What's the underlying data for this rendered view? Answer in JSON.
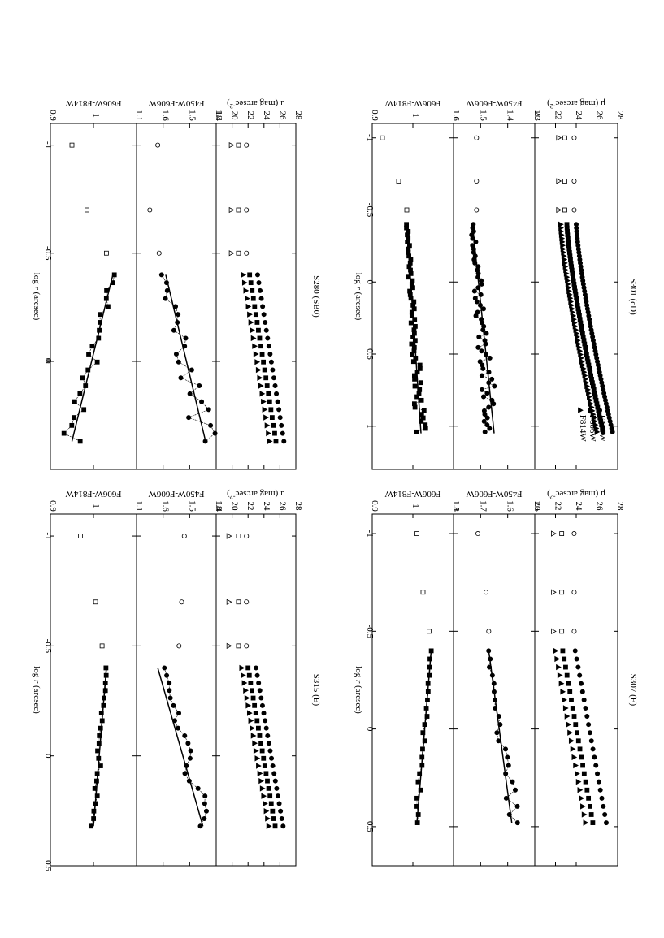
{
  "figure": {
    "x_axis_label_prefix": "log ",
    "x_axis_label_var": "r",
    "x_axis_label_suffix": " (arcsec)",
    "mu_label": "μ (mag arcsec",
    "mu_label_sup": "-2",
    "mu_label_close": ")",
    "color1_label": "F450W-F606W",
    "color2_label": "F606W-F814W"
  },
  "chart_data": [
    {
      "type": "scatter",
      "title": "S301 (cD)",
      "legend": [
        "F450W",
        "F606W",
        "F814W"
      ],
      "xlim": [
        -1.1,
        1.3
      ],
      "x_ticks": [
        "-1",
        "-0.5",
        "0",
        "0.5",
        "1"
      ],
      "mu": {
        "ylim": [
          28,
          20
        ],
        "ticks": [
          "28",
          "26",
          "24",
          "22",
          "20"
        ],
        "f450_points": [
          [
            -1.0,
            23.8
          ],
          [
            -0.7,
            23.8
          ],
          [
            -0.5,
            23.8
          ]
        ],
        "f606_points": [
          [
            -1.0,
            22.9
          ],
          [
            -0.7,
            22.9
          ],
          [
            -0.5,
            22.9
          ]
        ],
        "f814_points": [
          [
            -1.0,
            22.3
          ],
          [
            -0.7,
            22.3
          ],
          [
            -0.5,
            22.3
          ]
        ],
        "f450_profile": {
          "x_start": -0.4,
          "x_end": 1.04,
          "y_start": 24.0,
          "y_end": 27.5,
          "shape": "cd"
        },
        "f606_profile": {
          "x_start": -0.4,
          "x_end": 1.04,
          "y_start": 23.1,
          "y_end": 26.6,
          "shape": "cd"
        },
        "f814_profile": {
          "x_start": -0.4,
          "x_end": 1.04,
          "y_start": 22.5,
          "y_end": 26.0,
          "shape": "cd"
        }
      },
      "c1": {
        "ylim": [
          1.3,
          1.6
        ],
        "ticks": [
          "1.3",
          "1.4",
          "1.5",
          "1.6"
        ],
        "points": [
          [
            -1.0,
            1.515
          ],
          [
            -0.7,
            1.515
          ],
          [
            -0.5,
            1.515
          ]
        ],
        "fit": [
          [
            -0.4,
            1.53
          ],
          [
            1.05,
            1.45
          ]
        ],
        "data_x_start": -0.4,
        "data_x_end": 1.04,
        "data_y_start": 1.53,
        "data_y_end": 1.46,
        "scatter": 0.02
      },
      "c2": {
        "ylim": [
          1.1,
          0.9
        ],
        "ticks": [
          "1.1",
          "1",
          "0.9"
        ],
        "points": [
          [
            -1.0,
            0.925
          ],
          [
            -0.7,
            0.965
          ],
          [
            -0.5,
            0.985
          ]
        ],
        "fit": [
          [
            -0.4,
            0.985
          ],
          [
            1.05,
            1.02
          ]
        ],
        "data_x_start": -0.4,
        "data_x_end": 1.04,
        "data_y_start": 0.985,
        "data_y_end": 1.02,
        "scatter": 0.008
      }
    },
    {
      "type": "scatter",
      "title": "S307 (E)",
      "legend": [],
      "xlim": [
        -1.1,
        0.7
      ],
      "x_ticks": [
        "-1",
        "-0.5",
        "0",
        "0.5"
      ],
      "mu": {
        "ylim": [
          28,
          20
        ],
        "ticks": [
          "28",
          "26",
          "24",
          "22",
          "20"
        ],
        "f450_points": [
          [
            -1.0,
            23.8
          ],
          [
            -0.7,
            23.8
          ],
          [
            -0.5,
            23.8
          ]
        ],
        "f606_points": [
          [
            -1.0,
            22.6
          ],
          [
            -0.7,
            22.6
          ],
          [
            -0.5,
            22.6
          ]
        ],
        "f814_points": [
          [
            -1.0,
            21.8
          ],
          [
            -0.7,
            21.8
          ],
          [
            -0.5,
            21.8
          ]
        ],
        "f450_profile": {
          "x_start": -0.4,
          "x_end": 0.48,
          "y_start": 23.9,
          "y_end": 26.9,
          "shape": "e"
        },
        "f606_profile": {
          "x_start": -0.4,
          "x_end": 0.48,
          "y_start": 22.7,
          "y_end": 25.6,
          "shape": "e"
        },
        "f814_profile": {
          "x_start": -0.4,
          "x_end": 0.48,
          "y_start": 22.0,
          "y_end": 24.9,
          "shape": "e"
        }
      },
      "c1": {
        "ylim": [
          1.5,
          1.8
        ],
        "ticks": [
          "1.5",
          "1.6",
          "1.7",
          "1.8"
        ],
        "points": [
          [
            -1.0,
            1.71
          ],
          [
            -0.7,
            1.68
          ],
          [
            -0.5,
            1.67
          ]
        ],
        "fit": [
          [
            -0.4,
            1.67
          ],
          [
            0.48,
            1.585
          ]
        ],
        "data_x_start": -0.4,
        "data_x_end": 0.48,
        "data_y_start": 1.67,
        "data_y_end": 1.58,
        "scatter": 0.018
      },
      "c2": {
        "ylim": [
          1.1,
          0.9
        ],
        "ticks": [
          "1.1",
          "1",
          "0.9"
        ],
        "points": [
          [
            -1.0,
            1.01
          ],
          [
            -0.7,
            1.025
          ],
          [
            -0.5,
            1.04
          ]
        ],
        "fit": [
          [
            -0.4,
            1.045
          ],
          [
            0.48,
            1.01
          ]
        ],
        "data_x_start": -0.4,
        "data_x_end": 0.48,
        "data_y_start": 1.045,
        "data_y_end": 1.01,
        "scatter": 0.004
      }
    },
    {
      "type": "scatter",
      "title": "S280 (SB0)",
      "legend": [],
      "xlim": [
        -1.1,
        0.5
      ],
      "x_ticks": [
        "-1",
        "-0.5",
        "0",
        "0."
      ],
      "mu": {
        "ylim": [
          28,
          18
        ],
        "ticks": [
          "28",
          "26",
          "24",
          "22",
          "20",
          "18"
        ],
        "f450_points": [
          [
            -1.0,
            21.8
          ],
          [
            -0.7,
            21.8
          ],
          [
            -0.5,
            21.8
          ]
        ],
        "f606_points": [
          [
            -1.0,
            20.8
          ],
          [
            -0.7,
            20.8
          ],
          [
            -0.5,
            20.8
          ]
        ],
        "f814_points": [
          [
            -1.0,
            19.9
          ],
          [
            -0.7,
            19.9
          ],
          [
            -0.5,
            19.9
          ]
        ],
        "f450_profile": {
          "x_start": -0.4,
          "x_end": 0.37,
          "y_start": 23.2,
          "y_end": 26.5,
          "shape": "e"
        },
        "f606_profile": {
          "x_start": -0.4,
          "x_end": 0.37,
          "y_start": 22.2,
          "y_end": 25.5,
          "shape": "e"
        },
        "f814_profile": {
          "x_start": -0.4,
          "x_end": 0.37,
          "y_start": 21.4,
          "y_end": 24.7,
          "shape": "e"
        }
      },
      "c1": {
        "ylim": [
          1.4,
          1.7
        ],
        "ticks": [
          "1.4",
          "1.5",
          "1.6"
        ],
        "points": [
          [
            -1.0,
            1.62
          ],
          [
            -0.7,
            1.65
          ],
          [
            -0.5,
            1.615
          ]
        ],
        "fit": [
          [
            -0.4,
            1.59
          ],
          [
            0.37,
            1.44
          ]
        ],
        "data_x_start": -0.4,
        "data_x_end": 0.37,
        "data_y_start": 1.6,
        "data_y_end": 1.44,
        "scatter": 0.03
      },
      "c2": {
        "ylim": [
          1.1,
          0.9
        ],
        "ticks": [
          "1.1",
          "1",
          "0.9"
        ],
        "points": [
          [
            -1.0,
            0.95
          ],
          [
            -0.7,
            0.985
          ],
          [
            -0.5,
            1.03
          ]
        ],
        "fit": [
          [
            -0.4,
            1.045
          ],
          [
            0.37,
            0.95
          ]
        ],
        "data_x_start": -0.4,
        "data_x_end": 0.37,
        "data_y_start": 1.045,
        "data_y_end": 0.95,
        "scatter": 0.015
      }
    },
    {
      "type": "scatter",
      "title": "S315 (E)",
      "legend": [],
      "xlim": [
        -1.1,
        0.5
      ],
      "x_ticks": [
        "-1",
        "-0.5",
        "0",
        "0.5"
      ],
      "mu": {
        "ylim": [
          28,
          18
        ],
        "ticks": [
          "28",
          "26",
          "24",
          "22",
          "20",
          "18"
        ],
        "f450_points": [
          [
            -1.0,
            21.8
          ],
          [
            -0.7,
            21.8
          ],
          [
            -0.5,
            21.8
          ]
        ],
        "f606_points": [
          [
            -1.0,
            20.8
          ],
          [
            -0.7,
            20.8
          ],
          [
            -0.5,
            20.8
          ]
        ],
        "f814_points": [
          [
            -1.0,
            19.6
          ],
          [
            -0.7,
            19.6
          ],
          [
            -0.5,
            19.6
          ]
        ],
        "f450_profile": {
          "x_start": -0.4,
          "x_end": 0.32,
          "y_start": 23.0,
          "y_end": 26.4,
          "shape": "e"
        },
        "f606_profile": {
          "x_start": -0.4,
          "x_end": 0.32,
          "y_start": 22.0,
          "y_end": 25.4,
          "shape": "e"
        },
        "f814_profile": {
          "x_start": -0.4,
          "x_end": 0.32,
          "y_start": 21.2,
          "y_end": 24.6,
          "shape": "e"
        }
      },
      "c1": {
        "ylim": [
          1.4,
          1.7
        ],
        "ticks": [
          "1.4",
          "1.5",
          "1.6"
        ],
        "points": [
          [
            -1.0,
            1.52
          ],
          [
            -0.7,
            1.53
          ],
          [
            -0.5,
            1.54
          ]
        ],
        "fit": [
          [
            -0.4,
            1.62
          ],
          [
            0.32,
            1.45
          ]
        ],
        "data_x_start": -0.4,
        "data_x_end": 0.32,
        "data_y_start": 1.6,
        "data_y_end": 1.44,
        "scatter": 0.02
      },
      "c2": {
        "ylim": [
          1.1,
          0.9
        ],
        "ticks": [
          "1.1",
          "1",
          "0.9"
        ],
        "points": [
          [
            -1.0,
            0.97
          ],
          [
            -0.7,
            1.005
          ],
          [
            -0.5,
            1.02
          ]
        ],
        "fit": [
          [
            -0.4,
            1.03
          ],
          [
            0.32,
            1.0
          ]
        ],
        "data_x_start": -0.4,
        "data_x_end": 0.32,
        "data_y_start": 1.03,
        "data_y_end": 1.0,
        "scatter": 0.005
      }
    }
  ]
}
